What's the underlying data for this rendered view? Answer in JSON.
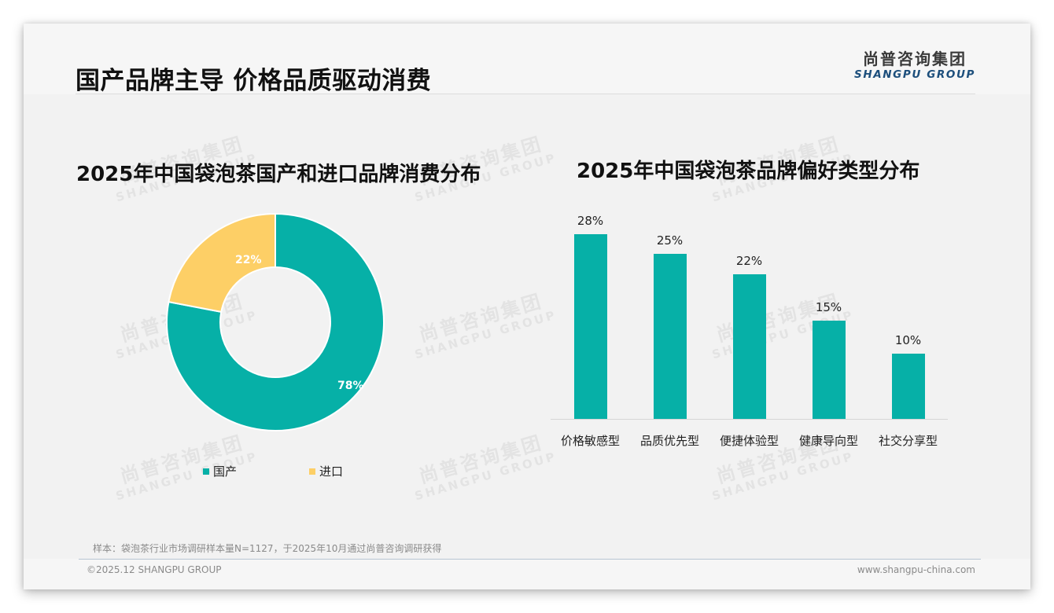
{
  "header": {
    "title": "国产品牌主导 价格品质驱动消费",
    "logo_cn": "尚普咨询集团",
    "logo_en": "SHANGPU GROUP"
  },
  "watermark": {
    "cn": "尚普咨询集团",
    "en": "SHANGPU GROUP"
  },
  "colors": {
    "teal": "#06B0A7",
    "yellow": "#FDCF66",
    "logo_blue": "#1D4F7C"
  },
  "chart_data": [
    {
      "type": "pie",
      "variant": "donut",
      "title": "2025年中国袋泡茶国产和进口品牌消费分布",
      "categories": [
        "国产",
        "进口"
      ],
      "values": [
        78,
        22
      ],
      "labels": [
        "78%",
        "22%"
      ],
      "colors": [
        "#06B0A7",
        "#FDCF66"
      ],
      "unit": "%",
      "legend_position": "bottom"
    },
    {
      "type": "bar",
      "title": "2025年中国袋泡茶品牌偏好类型分布",
      "categories": [
        "价格敏感型",
        "品质优先型",
        "便捷体验型",
        "健康导向型",
        "社交分享型"
      ],
      "values": [
        28,
        25,
        22,
        15,
        10
      ],
      "labels": [
        "28%",
        "25%",
        "22%",
        "15%",
        "10%"
      ],
      "color": "#06B0A7",
      "unit": "%",
      "xlabel": "",
      "ylabel": "",
      "grid": false,
      "ylim": [
        0,
        30
      ]
    }
  ],
  "left_chart": {
    "title": "2025年中国袋泡茶国产和进口品牌消费分布",
    "legend": [
      {
        "label": "国产",
        "color": "#06B0A7"
      },
      {
        "label": "进口",
        "color": "#FDCF66"
      }
    ],
    "slice_labels": {
      "domestic": "78%",
      "imported": "22%"
    }
  },
  "right_chart": {
    "title": "2025年中国袋泡茶品牌偏好类型分布",
    "bars": [
      {
        "label": "价格敏感型",
        "value": 28,
        "value_label": "28%"
      },
      {
        "label": "品质优先型",
        "value": 25,
        "value_label": "25%"
      },
      {
        "label": "便捷体验型",
        "value": 22,
        "value_label": "22%"
      },
      {
        "label": "健康导向型",
        "value": 15,
        "value_label": "15%"
      },
      {
        "label": "社交分享型",
        "value": 10,
        "value_label": "10%"
      }
    ]
  },
  "footer": {
    "sample_note": "样本：袋泡茶行业市场调研样本量N=1127，于2025年10月通过尚普咨询调研获得",
    "copyright": "©2025.12 SHANGPU GROUP",
    "website": "www.shangpu-china.com"
  }
}
